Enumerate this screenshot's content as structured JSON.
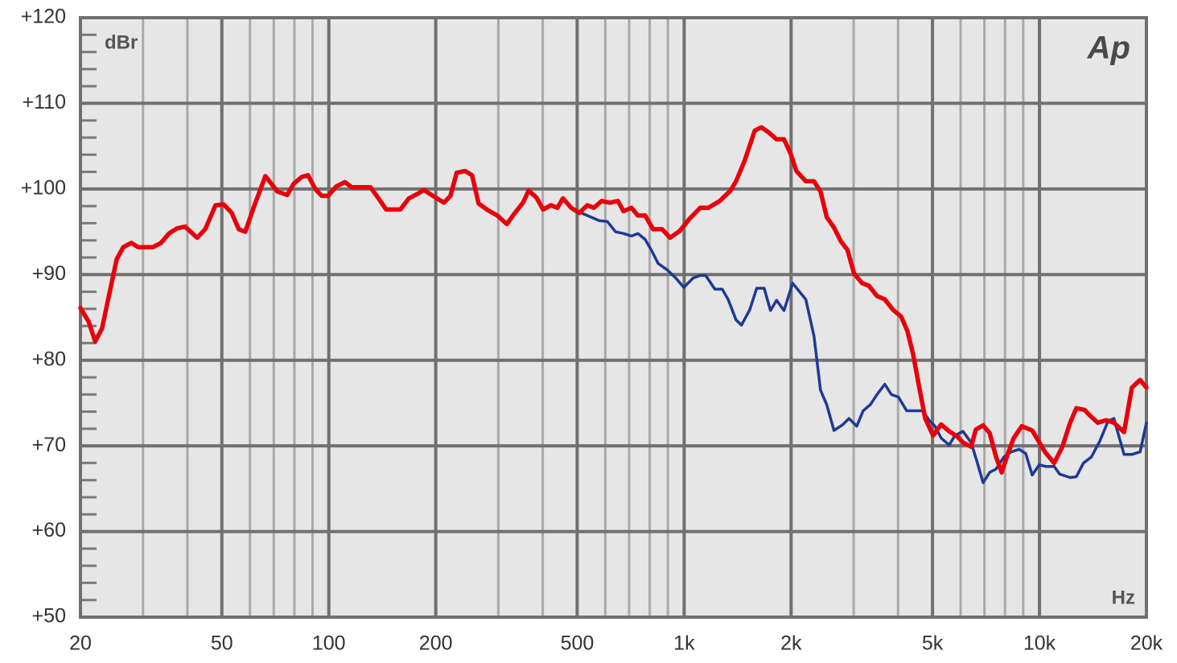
{
  "chart_data": {
    "type": "line",
    "xscale": "log",
    "xlim": [
      20,
      20000
    ],
    "ylim": [
      50,
      120
    ],
    "xticks": [
      20,
      50,
      100,
      200,
      500,
      {
        "value": 1000,
        "label": "1k"
      },
      {
        "value": 2000,
        "label": "2k"
      },
      {
        "value": 5000,
        "label": "5k"
      },
      {
        "value": 10000,
        "label": "10k"
      },
      {
        "value": 20000,
        "label": "20k"
      }
    ],
    "xminor_ticks": [
      30,
      40,
      60,
      70,
      80,
      90,
      300,
      400,
      600,
      700,
      800,
      900,
      3000,
      4000,
      6000,
      7000,
      8000,
      9000
    ],
    "yticks": [
      {
        "value": 50,
        "label": "+50"
      },
      {
        "value": 60,
        "label": "+60"
      },
      {
        "value": 70,
        "label": "+70"
      },
      {
        "value": 80,
        "label": "+80"
      },
      {
        "value": 90,
        "label": "+90"
      },
      {
        "value": 100,
        "label": "+100"
      },
      {
        "value": 110,
        "label": "+110"
      },
      {
        "value": 120,
        "label": "+120"
      }
    ],
    "yminor_ticks": [
      52,
      54,
      56,
      58,
      62,
      64,
      66,
      68,
      72,
      74,
      76,
      78,
      82,
      84,
      86,
      88,
      92,
      94,
      96,
      98,
      102,
      104,
      106,
      108,
      112,
      114,
      116,
      118
    ],
    "grid": true,
    "y_label": "dBr",
    "x_label": "Hz",
    "logo": "Ap",
    "series": [
      {
        "color": "#1f3a93",
        "x": [
          501,
          534,
          577,
          608,
          641,
          675,
          711,
          741,
          777,
          810,
          845,
          899,
          947,
          998,
          1060,
          1110,
          1150,
          1220,
          1280,
          1330,
          1400,
          1450,
          1530,
          1600,
          1680,
          1750,
          1820,
          1910,
          2020,
          2200,
          2320,
          2420,
          2520,
          2640,
          2800,
          2910,
          3060,
          3190,
          3340,
          3490,
          3670,
          3830,
          4010,
          4230,
          4520,
          4690,
          4890,
          5080,
          5290,
          5570,
          5780,
          6090,
          6420,
          6690,
          6940,
          7240,
          7550,
          7940,
          8330,
          8770,
          9150,
          9540,
          9990,
          10400,
          11000,
          11400,
          12200,
          12700,
          13300,
          14000,
          14800,
          15600,
          16200,
          17300,
          18200,
          19200,
          20000
        ],
        "values": [
          97.4,
          96.9,
          96.3,
          96.2,
          95.0,
          94.8,
          94.5,
          94.8,
          94.1,
          92.8,
          91.3,
          90.5,
          89.6,
          88.5,
          89.6,
          89.9,
          89.9,
          88.3,
          88.3,
          87.1,
          84.7,
          84.1,
          85.9,
          88.4,
          88.4,
          85.8,
          87.0,
          85.8,
          89.0,
          87.1,
          82.8,
          76.5,
          74.8,
          71.8,
          72.5,
          73.2,
          72.3,
          74.1,
          74.8,
          76.0,
          77.2,
          76.0,
          75.7,
          74.1,
          74.1,
          74.1,
          73.0,
          72.3,
          70.9,
          70.1,
          71.2,
          71.7,
          70.4,
          68.0,
          65.7,
          66.9,
          67.3,
          68.7,
          69.3,
          69.6,
          69.1,
          66.6,
          67.8,
          67.6,
          67.6,
          66.7,
          66.3,
          66.4,
          68.0,
          68.7,
          70.6,
          72.9,
          73.2,
          69.0,
          69.0,
          69.3,
          72.7
        ]
      },
      {
        "color": "#e8000b",
        "x": [
          20,
          21.1,
          22.0,
          23.0,
          24.3,
          25.3,
          26.4,
          27.8,
          29.1,
          32.0,
          33.7,
          35.5,
          37.4,
          39.4,
          42.6,
          44.9,
          48.0,
          50.6,
          53.3,
          55.8,
          58.2,
          61.4,
          66.3,
          71.7,
          76.4,
          79.6,
          83.9,
          87.4,
          91.6,
          95.5,
          99.6,
          105,
          111,
          116,
          131,
          138,
          145,
          159,
          168,
          179,
          185,
          198,
          211,
          220,
          229,
          242,
          253,
          264,
          281,
          298,
          317,
          334,
          352,
          365,
          384,
          401,
          422,
          440,
          456,
          481,
          507,
          534,
          557,
          586,
          618,
          651,
          675,
          711,
          741,
          777,
          818,
          867,
          913,
          972,
          1040,
          1110,
          1170,
          1260,
          1350,
          1400,
          1480,
          1580,
          1650,
          1730,
          1820,
          1910,
          1990,
          2070,
          2200,
          2320,
          2420,
          2520,
          2640,
          2760,
          2880,
          3010,
          3170,
          3310,
          3490,
          3670,
          3870,
          4080,
          4250,
          4410,
          4570,
          4770,
          5020,
          5290,
          5570,
          5870,
          6090,
          6420,
          6620,
          6940,
          7240,
          7550,
          7830,
          8120,
          8460,
          8920,
          9540,
          9990,
          10400,
          11000,
          11600,
          12200,
          12700,
          13400,
          13900,
          14600,
          15400,
          16200,
          17300,
          18200,
          19200,
          20000
        ],
        "values": [
          86.1,
          84.5,
          82.2,
          83.7,
          88.4,
          91.8,
          93.2,
          93.7,
          93.2,
          93.2,
          93.7,
          94.8,
          95.4,
          95.6,
          94.3,
          95.3,
          98.1,
          98.2,
          97.2,
          95.3,
          95.0,
          97.8,
          101.5,
          99.7,
          99.3,
          100.6,
          101.4,
          101.6,
          100.0,
          99.2,
          99.2,
          100.3,
          100.8,
          100.2,
          100.2,
          98.9,
          97.6,
          97.6,
          98.9,
          99.5,
          99.9,
          99.1,
          98.4,
          99.2,
          101.9,
          102.1,
          101.6,
          98.3,
          97.5,
          96.9,
          95.9,
          97.2,
          98.4,
          99.8,
          99.0,
          97.6,
          98.1,
          97.8,
          98.9,
          97.8,
          97.2,
          98.1,
          97.8,
          98.6,
          98.4,
          98.6,
          97.4,
          97.8,
          96.9,
          96.9,
          95.3,
          95.3,
          94.3,
          95.1,
          96.6,
          97.8,
          97.8,
          98.6,
          99.8,
          100.9,
          103.3,
          106.8,
          107.2,
          106.6,
          105.8,
          105.8,
          104.2,
          102.1,
          100.9,
          100.9,
          99.7,
          96.7,
          95.5,
          93.9,
          92.9,
          90.1,
          89.0,
          88.7,
          87.5,
          87.1,
          85.9,
          85.1,
          83.4,
          80.7,
          77.2,
          73.2,
          71.2,
          72.5,
          71.7,
          71.1,
          70.4,
          69.9,
          71.9,
          72.4,
          71.5,
          68.7,
          66.9,
          68.9,
          70.9,
          72.3,
          71.8,
          70.4,
          69.2,
          68.0,
          69.9,
          72.7,
          74.4,
          74.2,
          73.5,
          72.7,
          73.0,
          72.7,
          71.6,
          76.8,
          77.7,
          76.8
        ]
      }
    ]
  }
}
